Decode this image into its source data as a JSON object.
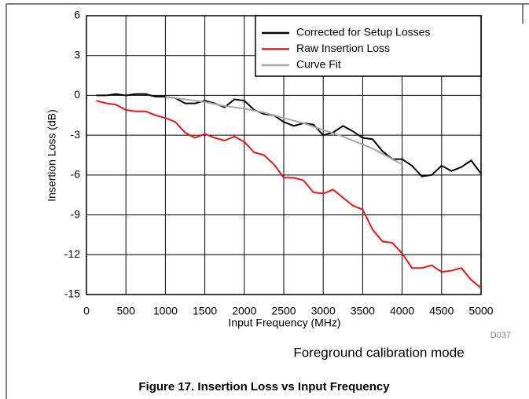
{
  "chart_data": {
    "type": "line",
    "figure_title": "Figure 17. Insertion Loss vs Input Frequency",
    "subtitle": "Foreground calibration mode",
    "code": "D037",
    "xlabel": "Input Frequency (MHz)",
    "ylabel": "Insertion Loss (dB)",
    "x": [
      125,
      250,
      375,
      500,
      625,
      750,
      875,
      1000,
      1125,
      1250,
      1375,
      1500,
      1625,
      1750,
      1875,
      2000,
      2125,
      2250,
      2375,
      2500,
      2625,
      2750,
      2875,
      3000,
      3125,
      3250,
      3375,
      3500,
      3625,
      3750,
      3875,
      4000,
      4125,
      4250,
      4375,
      4500,
      4625,
      4750,
      4875,
      5000
    ],
    "series": [
      {
        "name": "Corrected for Setup Losses",
        "color": "#000000",
        "values": [
          0,
          0,
          0.1,
          0,
          0.1,
          0.1,
          -0.1,
          -0.1,
          -0.2,
          -0.6,
          -0.6,
          -0.4,
          -0.6,
          -0.9,
          -0.3,
          -0.4,
          -1.1,
          -1.4,
          -1.5,
          -2.0,
          -2.3,
          -2.1,
          -2.2,
          -3.0,
          -2.8,
          -2.3,
          -2.7,
          -3.2,
          -3.3,
          -4.2,
          -4.8,
          -4.8,
          -5.3,
          -6.1,
          -6.0,
          -5.3,
          -5.7,
          -5.4,
          -4.9,
          -5.9
        ]
      },
      {
        "name": "Raw Insertion Loss",
        "color": "#e8161b",
        "values": [
          -0.4,
          -0.6,
          -0.7,
          -1.1,
          -1.2,
          -1.2,
          -1.5,
          -1.7,
          -2.0,
          -2.8,
          -3.2,
          -2.9,
          -3.2,
          -3.4,
          -3.1,
          -3.5,
          -4.3,
          -4.5,
          -5.2,
          -6.2,
          -6.2,
          -6.4,
          -7.3,
          -7.4,
          -7.1,
          -7.7,
          -8.3,
          -8.6,
          -10.1,
          -11.0,
          -11.1,
          -11.9,
          -13.0,
          -13.0,
          -12.8,
          -13.3,
          -13.2,
          -13.0,
          -13.9,
          -14.5
        ]
      },
      {
        "name": "Curve Fit",
        "color": "#a6a6a6",
        "values": [
          null,
          null,
          null,
          null,
          null,
          null,
          null,
          -0.1,
          -0.2,
          -0.3,
          -0.4,
          -0.5,
          -0.65,
          -0.8,
          -0.9,
          -1.0,
          -1.15,
          -1.3,
          -1.5,
          -1.7,
          -1.9,
          -2.1,
          -2.35,
          -2.6,
          -2.85,
          -3.1,
          -3.4,
          -3.7,
          -4.0,
          -4.4,
          -4.8,
          -5.2,
          null,
          null,
          null,
          null,
          null,
          null,
          null,
          null
        ]
      }
    ],
    "xlim": [
      0,
      5000
    ],
    "xticks": [
      0,
      500,
      1000,
      1500,
      2000,
      2500,
      3000,
      3500,
      4000,
      4500,
      5000
    ],
    "ylim": [
      -15,
      6
    ],
    "yticks": [
      -15,
      -12,
      -9,
      -6,
      -3,
      0,
      3,
      6
    ],
    "grid": true,
    "legend": "upper right"
  }
}
